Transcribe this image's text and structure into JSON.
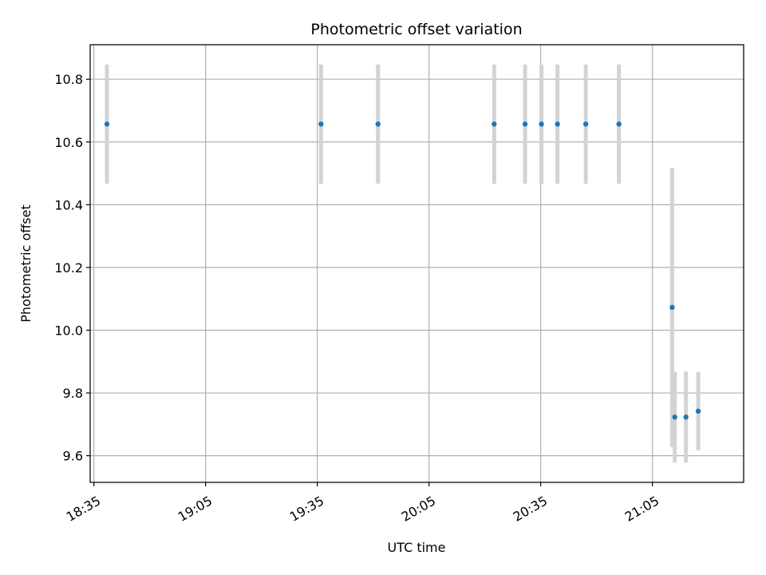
{
  "chart_data": {
    "type": "scatter",
    "title": "Photometric offset variation",
    "xlabel": "UTC time",
    "ylabel": "Photometric offset",
    "x_ticks": [
      "18:35",
      "19:05",
      "19:35",
      "20:05",
      "20:35",
      "21:05"
    ],
    "x_tick_minutes": [
      1115,
      1145,
      1175,
      1205,
      1235,
      1265
    ],
    "xlim_minutes": [
      1114,
      1289.5
    ],
    "y_ticks": [
      "9.6",
      "9.8",
      "10.0",
      "10.2",
      "10.4",
      "10.6",
      "10.8"
    ],
    "ylim": [
      9.515,
      10.91
    ],
    "grid": true,
    "colors": {
      "point": "#1f77b4",
      "errorbar": "#d3d3d3",
      "grid": "#b0b0b0"
    },
    "series": [
      {
        "points": [
          {
            "t": "18:38.5",
            "minutes": 1118.5,
            "y": 10.657,
            "err": 0.19
          },
          {
            "t": "19:36.0",
            "minutes": 1176.0,
            "y": 10.657,
            "err": 0.19
          },
          {
            "t": "19:51.3",
            "minutes": 1191.3,
            "y": 10.657,
            "err": 0.19
          },
          {
            "t": "20:22.5",
            "minutes": 1222.5,
            "y": 10.657,
            "err": 0.19
          },
          {
            "t": "20:30.8",
            "minutes": 1230.8,
            "y": 10.657,
            "err": 0.19
          },
          {
            "t": "20:35.2",
            "minutes": 1235.2,
            "y": 10.657,
            "err": 0.19
          },
          {
            "t": "20:39.5",
            "minutes": 1239.5,
            "y": 10.657,
            "err": 0.19
          },
          {
            "t": "20:47.1",
            "minutes": 1247.1,
            "y": 10.657,
            "err": 0.19
          },
          {
            "t": "20:56.0",
            "minutes": 1256.0,
            "y": 10.657,
            "err": 0.19
          },
          {
            "t": "21:10.3",
            "minutes": 1270.3,
            "y": 10.073,
            "err": 0.445
          },
          {
            "t": "21:11.0",
            "minutes": 1271.0,
            "y": 9.723,
            "err": 0.145
          },
          {
            "t": "21:14.0",
            "minutes": 1274.0,
            "y": 9.723,
            "err": 0.145
          },
          {
            "t": "21:17.3",
            "minutes": 1277.3,
            "y": 9.742,
            "err": 0.125
          }
        ]
      }
    ]
  }
}
